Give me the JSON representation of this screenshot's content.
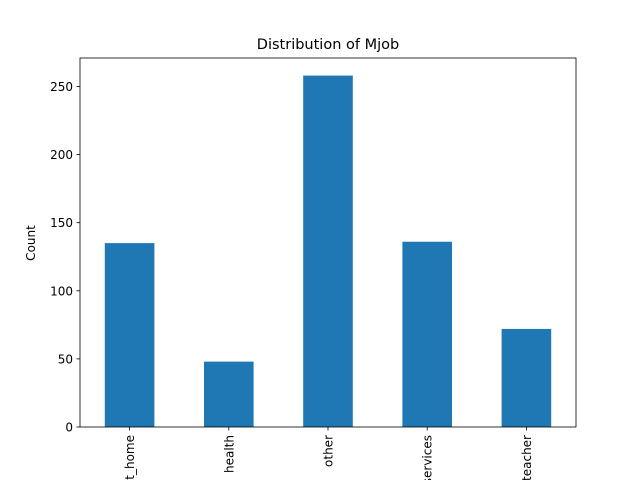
{
  "chart_data": {
    "type": "bar",
    "title": "Distribution of Mjob",
    "xlabel": "",
    "ylabel": "Count",
    "categories": [
      "at_home",
      "health",
      "other",
      "services",
      "teacher"
    ],
    "values": [
      135,
      48,
      258,
      136,
      72
    ],
    "ylim": [
      0,
      270.9
    ],
    "yticks": [
      0,
      50,
      100,
      150,
      200,
      250
    ],
    "bar_color": "#1f77b4",
    "grid": false,
    "legend": "none",
    "x_tick_rotation": "vertical"
  }
}
